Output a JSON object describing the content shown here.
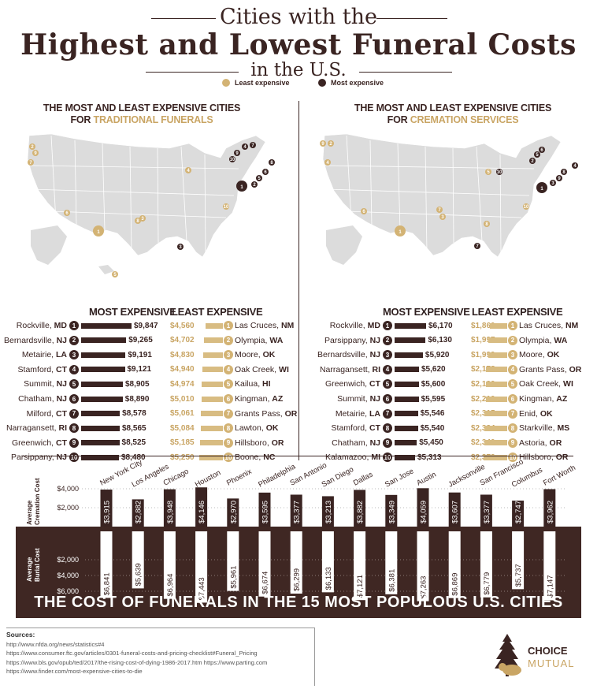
{
  "header": {
    "line1": "Cities with the",
    "line2": "Highest and Lowest Funeral Costs",
    "line3": "in the U.S.",
    "legend_least": "Least expensive",
    "legend_most": "Most expensive"
  },
  "colors": {
    "dark": "#3a2422",
    "gold": "#d3b374",
    "brown_bg": "#3f2723"
  },
  "traditional": {
    "title_line1": "The Most and Least Expensive Cities",
    "title_prefix": "for",
    "title_accent": "Traditional Funerals",
    "most_header": "Most Expensive",
    "least_header": "Least Expensive",
    "most": [
      {
        "city": "Rockville,",
        "state": "MD",
        "value": "$9,847",
        "amount": 9847
      },
      {
        "city": "Bernardsville,",
        "state": "NJ",
        "value": "$9,265",
        "amount": 9265
      },
      {
        "city": "Metairie,",
        "state": "LA",
        "value": "$9,191",
        "amount": 9191
      },
      {
        "city": "Stamford,",
        "state": "CT",
        "value": "$9,121",
        "amount": 9121
      },
      {
        "city": "Summit,",
        "state": "NJ",
        "value": "$8,905",
        "amount": 8905
      },
      {
        "city": "Chatham,",
        "state": "NJ",
        "value": "$8,890",
        "amount": 8890
      },
      {
        "city": "Milford,",
        "state": "CT",
        "value": "$8,578",
        "amount": 8578
      },
      {
        "city": "Narragansett,",
        "state": "RI",
        "value": "$8,565",
        "amount": 8565
      },
      {
        "city": "Greenwich,",
        "state": "CT",
        "value": "$8,525",
        "amount": 8525
      },
      {
        "city": "Parsippany,",
        "state": "NJ",
        "value": "$8,480",
        "amount": 8480
      }
    ],
    "least": [
      {
        "city": "Las Cruces,",
        "state": "NM",
        "value": "$4,560",
        "amount": 4560
      },
      {
        "city": "Olympia,",
        "state": "WA",
        "value": "$4,702",
        "amount": 4702
      },
      {
        "city": "Moore,",
        "state": "OK",
        "value": "$4,830",
        "amount": 4830
      },
      {
        "city": "Oak Creek,",
        "state": "WI",
        "value": "$4,940",
        "amount": 4940
      },
      {
        "city": "Kailua,",
        "state": "HI",
        "value": "$4,974",
        "amount": 4974
      },
      {
        "city": "Kingman,",
        "state": "AZ",
        "value": "$5,010",
        "amount": 5010
      },
      {
        "city": "Grants Pass,",
        "state": "OR",
        "value": "$5,061",
        "amount": 5061
      },
      {
        "city": "Lawton,",
        "state": "OK",
        "value": "$5,084",
        "amount": 5084
      },
      {
        "city": "Hillsboro,",
        "state": "OR",
        "value": "$5,185",
        "amount": 5185
      },
      {
        "city": "Boone,",
        "state": "NC",
        "value": "$5,250",
        "amount": 5250
      }
    ]
  },
  "cremation": {
    "title_line1": "The Most and Least Expensive Cities",
    "title_prefix": "for",
    "title_accent": "Cremation Services",
    "most_header": "Most Expensive",
    "least_header": "Least Expensive",
    "most": [
      {
        "city": "Rockville,",
        "state": "MD",
        "value": "$6,170",
        "amount": 6170
      },
      {
        "city": "Parsippany,",
        "state": "NJ",
        "value": "$6,130",
        "amount": 6130
      },
      {
        "city": "Bernardsville,",
        "state": "NJ",
        "value": "$5,920",
        "amount": 5920
      },
      {
        "city": "Narragansett,",
        "state": "RI",
        "value": "$5,620",
        "amount": 5620
      },
      {
        "city": "Greenwich,",
        "state": "CT",
        "value": "$5,600",
        "amount": 5600
      },
      {
        "city": "Summit,",
        "state": "NJ",
        "value": "$5,595",
        "amount": 5595
      },
      {
        "city": "Metairie,",
        "state": "LA",
        "value": "$5,546",
        "amount": 5546
      },
      {
        "city": "Stamford,",
        "state": "CT",
        "value": "$5,540",
        "amount": 5540
      },
      {
        "city": "Chatham,",
        "state": "NJ",
        "value": "$5,450",
        "amount": 5450
      },
      {
        "city": "Kalamazoo,",
        "state": "MI",
        "value": "$5,313",
        "amount": 5313
      }
    ],
    "least": [
      {
        "city": "Las Cruces,",
        "state": "NM",
        "value": "$1,860",
        "amount": 1860
      },
      {
        "city": "Olympia,",
        "state": "WA",
        "value": "$1,997",
        "amount": 1997
      },
      {
        "city": "Moore,",
        "state": "OK",
        "value": "$1,999",
        "amount": 1999
      },
      {
        "city": "Grants Pass,",
        "state": "OR",
        "value": "$2,178",
        "amount": 2178
      },
      {
        "city": "Oak Creek,",
        "state": "WI",
        "value": "$2,190",
        "amount": 2190
      },
      {
        "city": "Kingman,",
        "state": "AZ",
        "value": "$2,210",
        "amount": 2210
      },
      {
        "city": "Enid,",
        "state": "OK",
        "value": "$2,315",
        "amount": 2315
      },
      {
        "city": "Starkville,",
        "state": "MS",
        "value": "$2,334",
        "amount": 2334
      },
      {
        "city": "Astoria,",
        "state": "OR",
        "value": "$2,340",
        "amount": 2340
      },
      {
        "city": "Hillsboro,",
        "state": "OR",
        "value": "$2,373",
        "amount": 2373
      }
    ]
  },
  "chart_data": {
    "type": "bar",
    "title": "The Cost of Funerals in the 15 Most Populous U.S. Cities",
    "categories": [
      "New York City",
      "Los Angeles",
      "Chicago",
      "Houston",
      "Phoenix",
      "Philadelphia",
      "San Antonio",
      "San Diego",
      "Dallas",
      "San Jose",
      "Austin",
      "Jacksonville",
      "San Francisco",
      "Columbus",
      "Fort Worth"
    ],
    "series": [
      {
        "name": "Average Cremation Cost",
        "values": [
          3915,
          2882,
          3948,
          4146,
          2970,
          3595,
          3377,
          3213,
          3882,
          3349,
          4059,
          3607,
          3377,
          2747,
          3962
        ],
        "labels": [
          "$3,915",
          "$2,882",
          "$3,948",
          "$4,146",
          "$2,970",
          "$3,595",
          "$3,377",
          "$3,213",
          "$3,882",
          "$3,349",
          "$4,059",
          "$3,607",
          "$3,377",
          "$2,747",
          "$3,962"
        ]
      },
      {
        "name": "Average Burial Cost",
        "values": [
          6841,
          5639,
          6964,
          7443,
          5961,
          6674,
          6299,
          6133,
          7121,
          6381,
          7263,
          6869,
          6779,
          5737,
          7147
        ],
        "labels": [
          "$6,841",
          "$5,639",
          "$6,964",
          "$7,443",
          "$5,961",
          "$6,674",
          "$6,299",
          "$6,133",
          "$7,121",
          "$6,381",
          "$7,263",
          "$6,869",
          "$6,779",
          "$5,737",
          "$7,147"
        ]
      }
    ],
    "up_ticks": [
      "$4,000",
      "$2,000"
    ],
    "down_ticks": [
      "$2,000",
      "$4,000",
      "$6,000"
    ],
    "up_axis_label_1": "Average",
    "up_axis_label_2": "Cremation Cost",
    "down_axis_label_1": "Average",
    "down_axis_label_2": "Burial Cost"
  },
  "sources": {
    "heading": "Sources:",
    "lines": [
      "http://www.nfda.org/news/statistics#4",
      "https://www.consumer.ftc.gov/articles/0301-funeral-costs-and-pricing-checklist#Funeral_Pricing",
      "https://www.bls.gov/opub/ted/2017/the-rising-cost-of-dying-1986-2017.htm     https://www.parting.com",
      "https://www.finder.com/most-expensive-cities-to-die"
    ]
  },
  "logo": {
    "line1": "CHOICE",
    "line2": "MUTUAL"
  }
}
